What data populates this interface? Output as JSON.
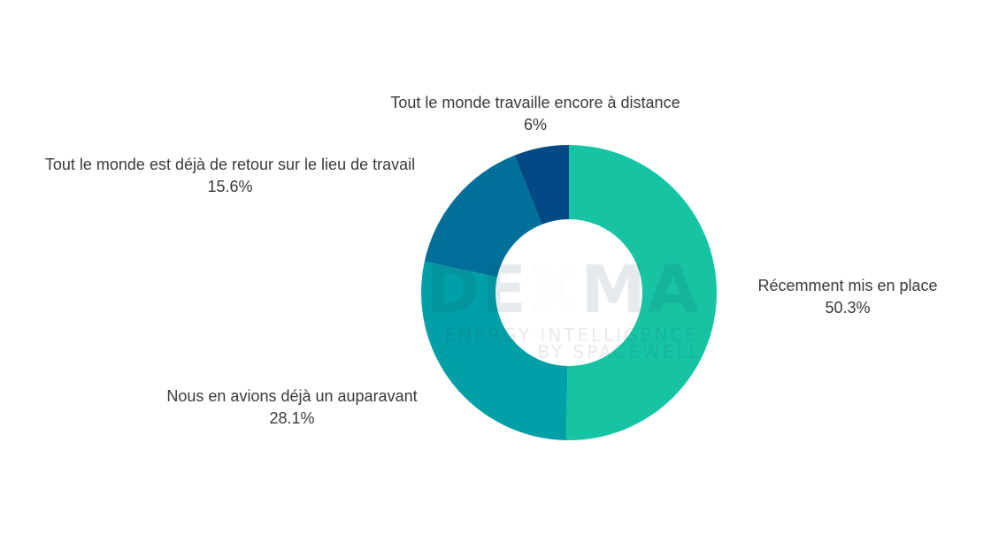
{
  "chart_data": {
    "type": "pie",
    "title": "",
    "slices": [
      {
        "label": "Récemment mis en place",
        "value": 50.3,
        "value_label": "50.3%",
        "color": "#16c4a4"
      },
      {
        "label": "Nous en avions déjà un auparavant",
        "value": 28.1,
        "value_label": "28.1%",
        "color": "#00a0a6"
      },
      {
        "label": "Tout le monde est déjà de retour sur le lieu de travail",
        "value": 15.6,
        "value_label": "15.6%",
        "color": "#00709b"
      },
      {
        "label": "Tout le monde travaille encore à distance",
        "value": 6.0,
        "value_label": "6%",
        "color": "#024a86"
      }
    ],
    "donut": true,
    "legend": "none"
  },
  "watermark": {
    "brand_part1": "DE",
    "brand_x": "X",
    "brand_part2": "MA",
    "line1": "ENERGY INTELLIGENCE",
    "line2": "BY SPACEWELL"
  }
}
